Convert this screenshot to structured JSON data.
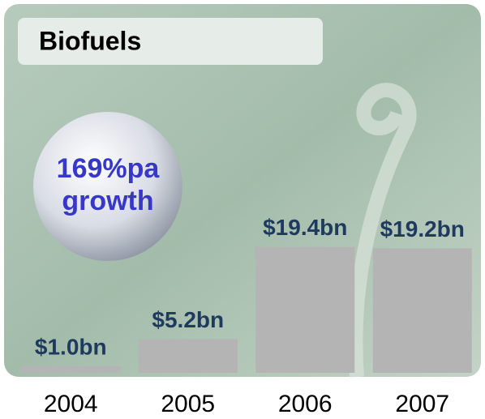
{
  "chart_data": {
    "type": "bar",
    "title": "Biofuels",
    "annotation": [
      "169%pa",
      "growth"
    ],
    "categories": [
      "2004",
      "2005",
      "2006",
      "2007"
    ],
    "values": [
      1.0,
      5.2,
      19.4,
      19.2
    ],
    "value_labels": [
      "$1.0bn",
      "$5.2bn",
      "$19.4bn",
      "$19.2bn"
    ],
    "color": "#b4b4b4"
  }
}
